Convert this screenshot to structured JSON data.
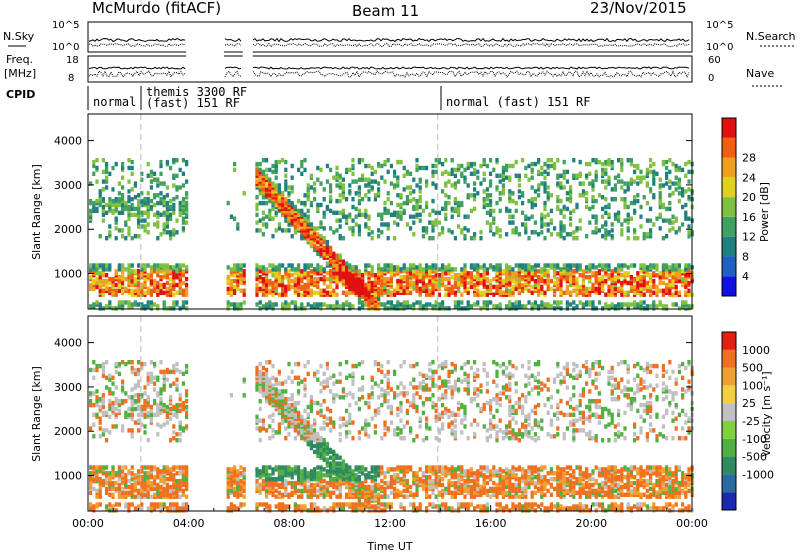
{
  "header": {
    "station": "McMurdo (fitACF)",
    "beam": "Beam 11",
    "date": "23/Nov/2015"
  },
  "status_panel": {
    "left_top": "N.Sky",
    "left_top_ticks": [
      "10^5",
      "10^0"
    ],
    "right_top": "N.Search",
    "right_top_ticks": [
      "10^5",
      "10^0"
    ],
    "left_mid_1": "Freq.",
    "left_mid_2": "[MHz]",
    "left_mid_ticks": [
      "18",
      "8"
    ],
    "right_mid": "Nave",
    "right_mid_ticks": [
      "60",
      "0"
    ],
    "cpid_label": "CPID",
    "modes": [
      "normal",
      "themis 3300 RF",
      "(fast) 151 RF",
      "normal (fast) 151 RF"
    ]
  },
  "chart_data": [
    {
      "type": "heatmap",
      "name": "power",
      "ylabel": "Slant Range [km]",
      "xlabel": "",
      "y_ticks": [
        "1000",
        "2000",
        "3000",
        "4000"
      ],
      "ylim": [
        200,
        4600
      ],
      "colorbar_label": "Power [dB]",
      "colorbar_ticks": [
        "4",
        "8",
        "12",
        "16",
        "20",
        "24",
        "28"
      ],
      "colorbar_colors": [
        "#1010e0",
        "#2060c0",
        "#208080",
        "#40a060",
        "#80c040",
        "#e0d020",
        "#f0a020",
        "#f06010",
        "#e01010"
      ]
    },
    {
      "type": "heatmap",
      "name": "velocity",
      "ylabel": "Slant Range [km]",
      "xlabel": "Time UT",
      "x_ticks": [
        "00:00",
        "04:00",
        "08:00",
        "12:00",
        "16:00",
        "20:00",
        "00:00"
      ],
      "y_ticks": [
        "1000",
        "2000",
        "3000",
        "4000"
      ],
      "ylim": [
        200,
        4600
      ],
      "colorbar_label": "Velocity [m s⁻¹]",
      "colorbar_ticks": [
        "1000",
        "500",
        "100",
        "25",
        "-25",
        "-100",
        "-500",
        "-1000"
      ],
      "colorbar_colors": [
        "#1a2ab0",
        "#2a6aa0",
        "#308a60",
        "#50b040",
        "#80d040",
        "#c0c0c0",
        "#f0d040",
        "#f0a030",
        "#f07020",
        "#e02010"
      ]
    }
  ]
}
